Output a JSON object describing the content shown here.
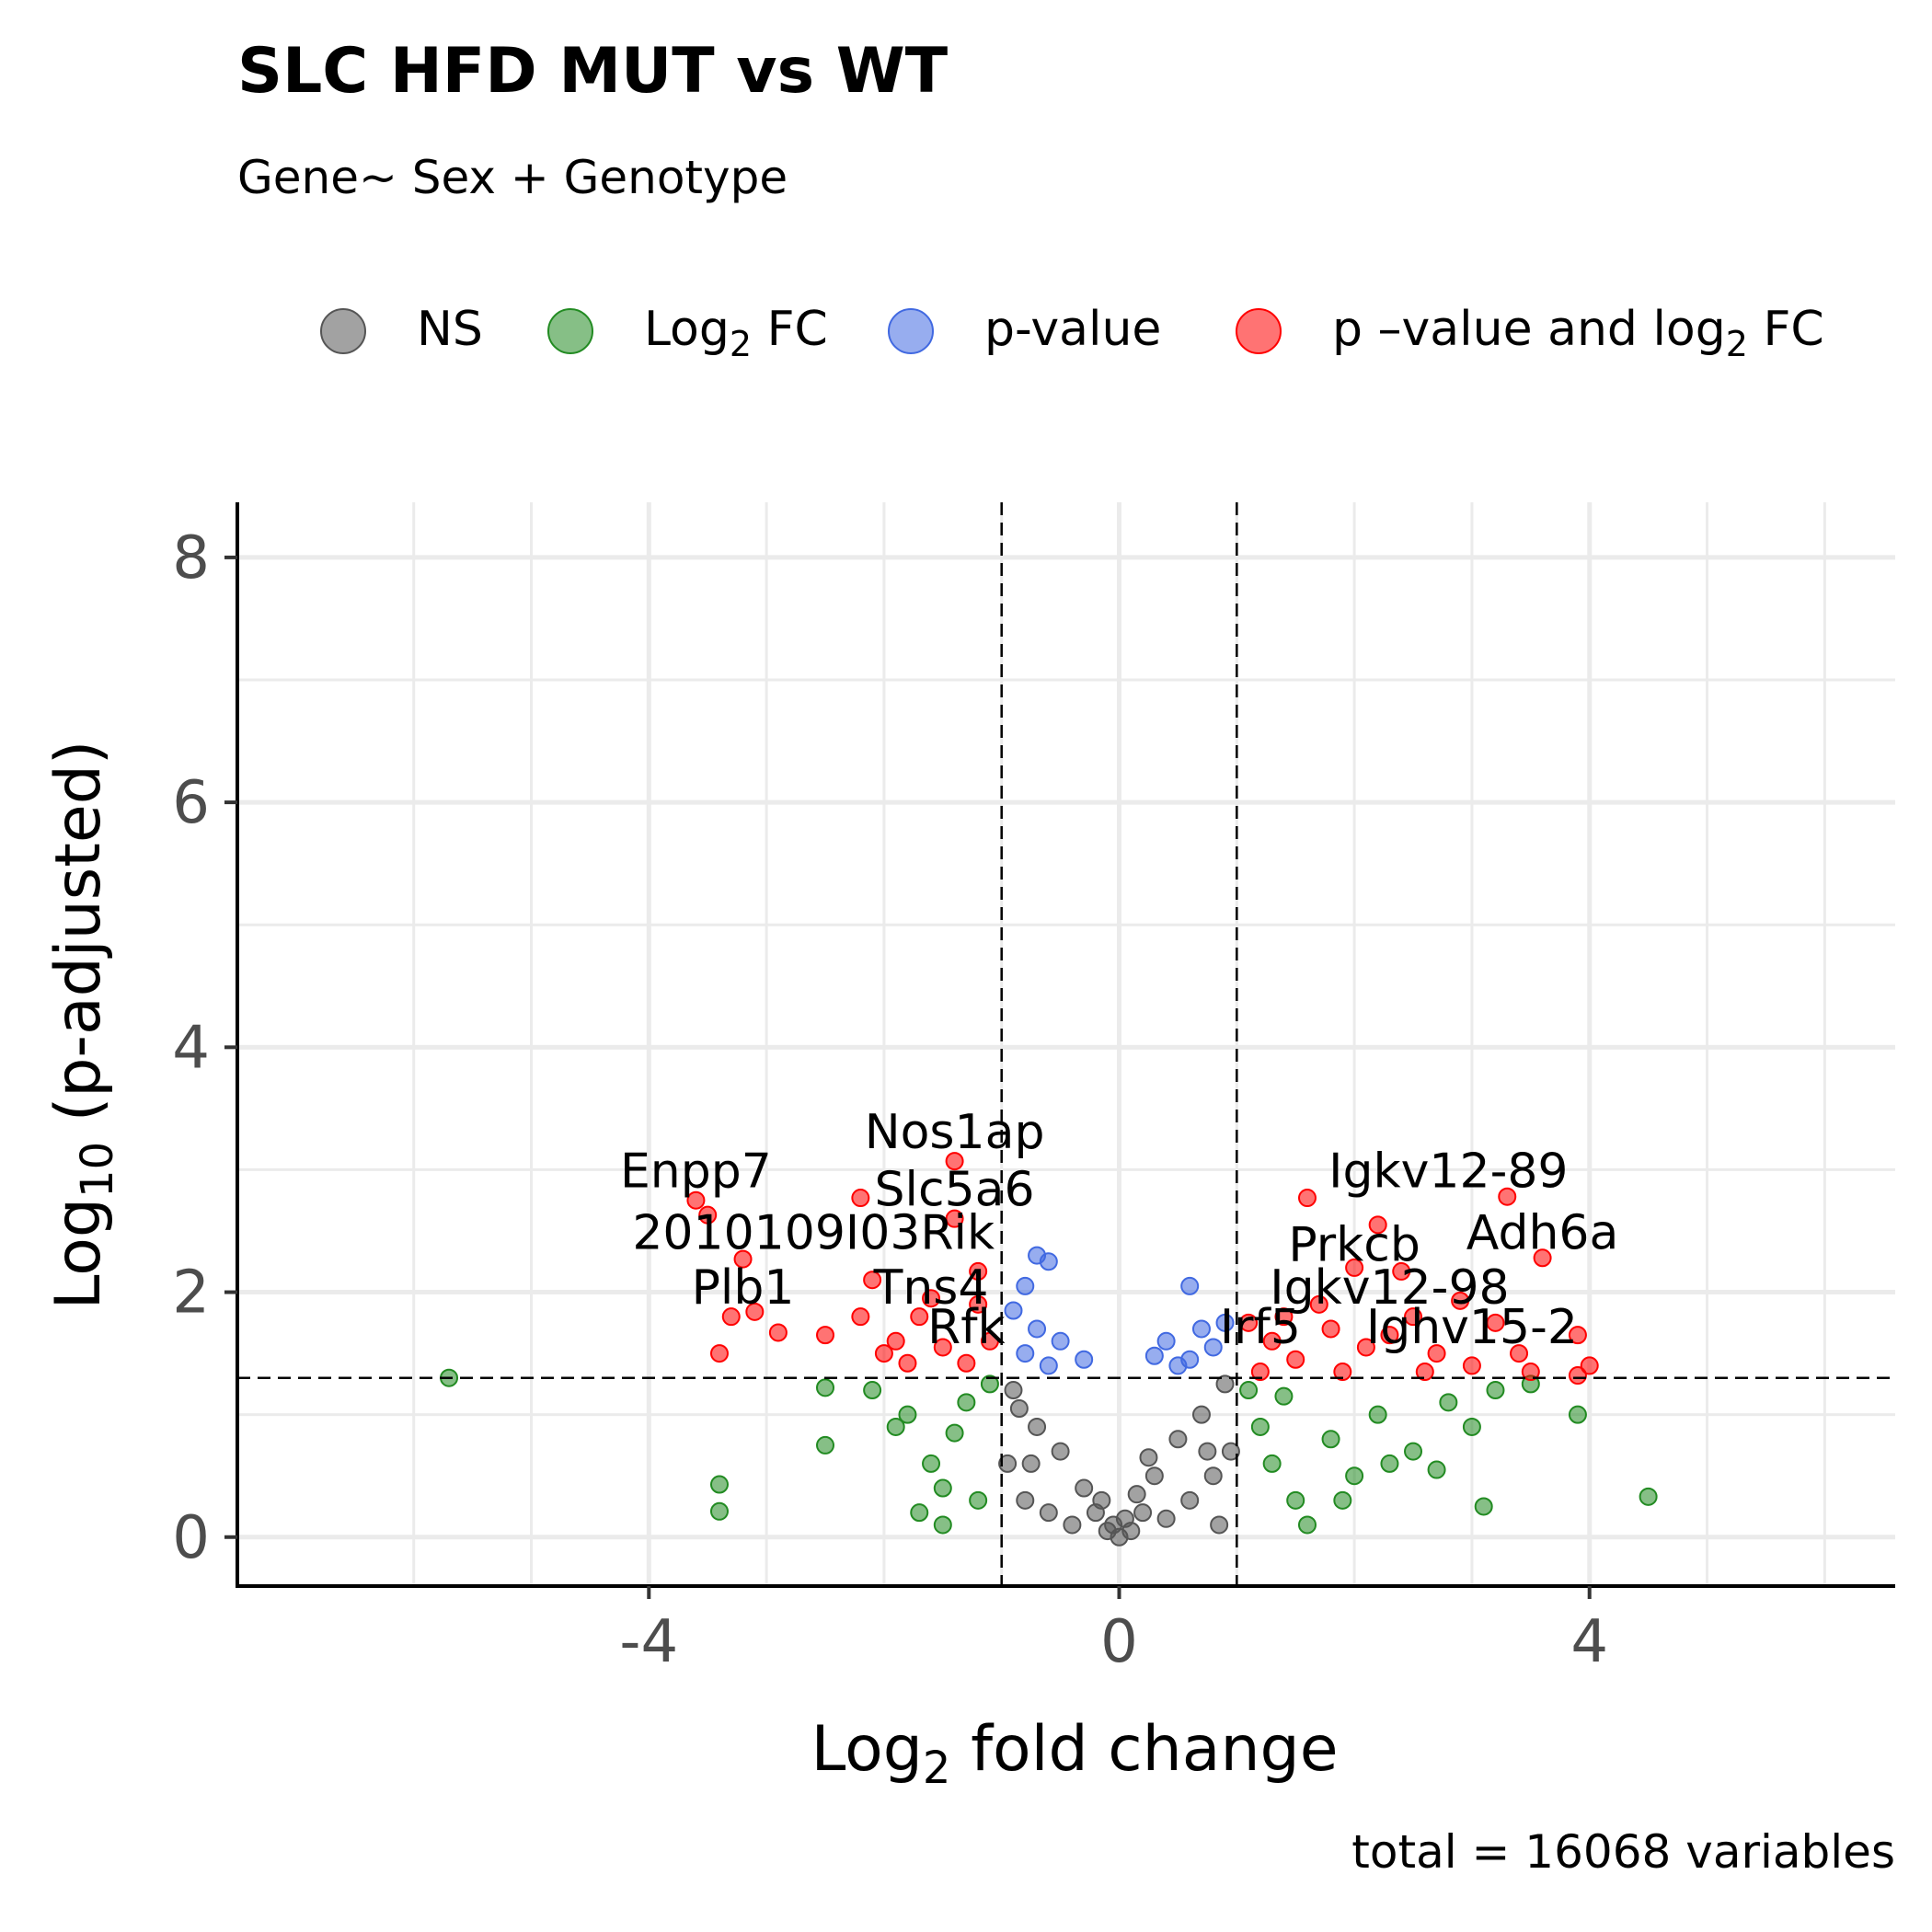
{
  "chart_data": {
    "type": "scatter",
    "title": "SLC HFD MUT vs WT",
    "subtitle": "Gene~ Sex + Genotype",
    "xlabel": {
      "base": "Log",
      "sub": "2",
      "rest": " fold change"
    },
    "ylabel": {
      "base": "Log",
      "sub": "10",
      "rest": " (p-adjusted)"
    },
    "caption": "total = 16068 variables",
    "xlim": [
      -7.5,
      6.6
    ],
    "ylim": [
      -0.4,
      8.45
    ],
    "x_ticks": [
      -4,
      0,
      4
    ],
    "y_ticks": [
      0,
      2,
      4,
      6,
      8
    ],
    "grid": true,
    "legend_position": "top",
    "thresholds": {
      "fc_cutoff": [
        -1,
        1
      ],
      "p_cutoff": 1.3
    },
    "legend": [
      {
        "key": "NS",
        "parts": [
          [
            "NS",
            ""
          ]
        ],
        "color": "#555555"
      },
      {
        "key": "FC",
        "parts": [
          [
            "Log",
            ""
          ],
          [
            "2",
            "sub"
          ],
          [
            " FC",
            ""
          ]
        ],
        "color": "#228B22"
      },
      {
        "key": "P",
        "parts": [
          [
            "p-value",
            ""
          ]
        ],
        "color": "#4169E1"
      },
      {
        "key": "PFC",
        "parts": [
          [
            "p –value and log",
            ""
          ],
          [
            "2",
            "sub"
          ],
          [
            " FC",
            ""
          ]
        ],
        "color": "#FF0000"
      }
    ],
    "colors": {
      "NS": "#555555",
      "FC": "#228B22",
      "P": "#4169E1",
      "PFC": "#FF0000"
    },
    "series": [
      {
        "key": "NS",
        "points": [
          [
            -0.9,
            1.2
          ],
          [
            -0.7,
            0.9
          ],
          [
            -0.5,
            0.7
          ],
          [
            -0.3,
            0.4
          ],
          [
            -0.2,
            0.2
          ],
          [
            -0.1,
            0.05
          ],
          [
            0.0,
            0.0
          ],
          [
            0.1,
            0.05
          ],
          [
            0.2,
            0.2
          ],
          [
            0.3,
            0.5
          ],
          [
            0.5,
            0.8
          ],
          [
            0.7,
            1.0
          ],
          [
            0.9,
            1.25
          ],
          [
            -0.8,
            0.3
          ],
          [
            -0.6,
            0.2
          ],
          [
            -0.4,
            0.1
          ],
          [
            0.4,
            0.15
          ],
          [
            0.6,
            0.3
          ],
          [
            0.8,
            0.5
          ],
          [
            -0.95,
            0.6
          ],
          [
            0.95,
            0.7
          ],
          [
            -0.85,
            1.05
          ],
          [
            0.85,
            0.1
          ],
          [
            -0.75,
            0.6
          ],
          [
            0.75,
            0.7
          ],
          [
            -0.15,
            0.3
          ],
          [
            0.15,
            0.35
          ],
          [
            -0.05,
            0.1
          ],
          [
            0.05,
            0.15
          ],
          [
            0.25,
            0.65
          ]
        ]
      },
      {
        "key": "FC",
        "points": [
          [
            -5.7,
            1.3
          ],
          [
            -3.4,
            0.43
          ],
          [
            -3.4,
            0.21
          ],
          [
            -2.5,
            1.22
          ],
          [
            -2.5,
            0.75
          ],
          [
            -1.8,
            1.0
          ],
          [
            -1.6,
            0.6
          ],
          [
            -1.5,
            0.4
          ],
          [
            -1.4,
            0.85
          ],
          [
            -1.3,
            1.1
          ],
          [
            -1.2,
            0.3
          ],
          [
            -1.1,
            1.25
          ],
          [
            -1.7,
            0.2
          ],
          [
            -1.5,
            0.1
          ],
          [
            1.1,
            1.2
          ],
          [
            1.2,
            0.9
          ],
          [
            1.3,
            0.6
          ],
          [
            1.5,
            0.3
          ],
          [
            1.6,
            0.1
          ],
          [
            1.8,
            0.8
          ],
          [
            2.0,
            0.5
          ],
          [
            2.2,
            1.0
          ],
          [
            2.5,
            0.7
          ],
          [
            2.7,
            0.55
          ],
          [
            3.0,
            0.9
          ],
          [
            3.1,
            0.25
          ],
          [
            3.5,
            1.25
          ],
          [
            3.9,
            1.0
          ],
          [
            4.5,
            0.33
          ],
          [
            2.8,
            1.1
          ],
          [
            1.4,
            1.15
          ],
          [
            1.9,
            0.3
          ],
          [
            2.3,
            0.6
          ],
          [
            3.2,
            1.2
          ],
          [
            -1.9,
            0.9
          ],
          [
            -2.1,
            1.2
          ]
        ]
      },
      {
        "key": "P",
        "points": [
          [
            -0.7,
            2.3
          ],
          [
            -0.6,
            2.25
          ],
          [
            -0.8,
            2.05
          ],
          [
            -0.9,
            1.85
          ],
          [
            -0.7,
            1.7
          ],
          [
            -0.5,
            1.6
          ],
          [
            -0.3,
            1.45
          ],
          [
            -0.6,
            1.4
          ],
          [
            -0.8,
            1.5
          ],
          [
            0.6,
            2.05
          ],
          [
            0.4,
            1.6
          ],
          [
            0.3,
            1.48
          ],
          [
            0.5,
            1.4
          ],
          [
            0.7,
            1.7
          ],
          [
            0.8,
            1.55
          ],
          [
            0.9,
            1.75
          ],
          [
            0.6,
            1.45
          ]
        ]
      },
      {
        "key": "PFC",
        "points": [
          [
            -1.4,
            3.07
          ],
          [
            -3.6,
            2.75
          ],
          [
            -3.5,
            2.63
          ],
          [
            -2.2,
            2.77
          ],
          [
            -1.4,
            2.6
          ],
          [
            -3.2,
            2.27
          ],
          [
            -2.1,
            2.1
          ],
          [
            -1.2,
            2.17
          ],
          [
            -3.3,
            1.8
          ],
          [
            -3.1,
            1.84
          ],
          [
            -2.9,
            1.67
          ],
          [
            -3.4,
            1.5
          ],
          [
            -2.5,
            1.65
          ],
          [
            -2.2,
            1.8
          ],
          [
            -1.9,
            1.6
          ],
          [
            -1.7,
            1.8
          ],
          [
            -1.5,
            1.55
          ],
          [
            -1.3,
            1.42
          ],
          [
            -1.1,
            1.6
          ],
          [
            -1.8,
            1.42
          ],
          [
            -2.0,
            1.5
          ],
          [
            -1.6,
            1.95
          ],
          [
            -1.2,
            1.9
          ],
          [
            1.6,
            2.77
          ],
          [
            2.2,
            2.55
          ],
          [
            3.3,
            2.78
          ],
          [
            3.6,
            2.28
          ],
          [
            2.0,
            2.2
          ],
          [
            2.4,
            2.17
          ],
          [
            2.9,
            1.93
          ],
          [
            3.2,
            1.75
          ],
          [
            3.9,
            1.65
          ],
          [
            4.0,
            1.4
          ],
          [
            3.9,
            1.32
          ],
          [
            1.1,
            1.75
          ],
          [
            1.3,
            1.6
          ],
          [
            1.5,
            1.45
          ],
          [
            1.8,
            1.7
          ],
          [
            2.1,
            1.55
          ],
          [
            2.5,
            1.8
          ],
          [
            2.7,
            1.5
          ],
          [
            3.0,
            1.4
          ],
          [
            3.4,
            1.5
          ],
          [
            1.2,
            1.35
          ],
          [
            1.7,
            1.9
          ],
          [
            2.3,
            1.65
          ],
          [
            1.4,
            1.8
          ],
          [
            1.9,
            1.35
          ],
          [
            2.6,
            1.35
          ],
          [
            3.5,
            1.35
          ]
        ]
      }
    ],
    "gene_labels": [
      {
        "text": "Nos1ap",
        "x": -1.4,
        "y": 3.07
      },
      {
        "text": "Enpp7",
        "x": -3.6,
        "y": 2.75
      },
      {
        "text": "Slc5a6",
        "x": -1.4,
        "y": 2.6
      },
      {
        "text": "2010109I03Rik",
        "x": -2.6,
        "y": 2.25
      },
      {
        "text": "Plb1",
        "x": -3.2,
        "y": 1.8
      },
      {
        "text": "Tns4",
        "x": -1.6,
        "y": 1.8
      },
      {
        "text": "Rfk",
        "x": -1.3,
        "y": 1.48
      },
      {
        "text": "Igkv12-89",
        "x": 2.8,
        "y": 2.75
      },
      {
        "text": "Adh6a",
        "x": 3.6,
        "y": 2.25
      },
      {
        "text": "Prkcb",
        "x": 2.0,
        "y": 2.15
      },
      {
        "text": "Igkv12-98",
        "x": 2.3,
        "y": 1.8
      },
      {
        "text": "Irf5",
        "x": 1.2,
        "y": 1.48
      },
      {
        "text": "Ighv15-2",
        "x": 3.0,
        "y": 1.48
      }
    ]
  }
}
